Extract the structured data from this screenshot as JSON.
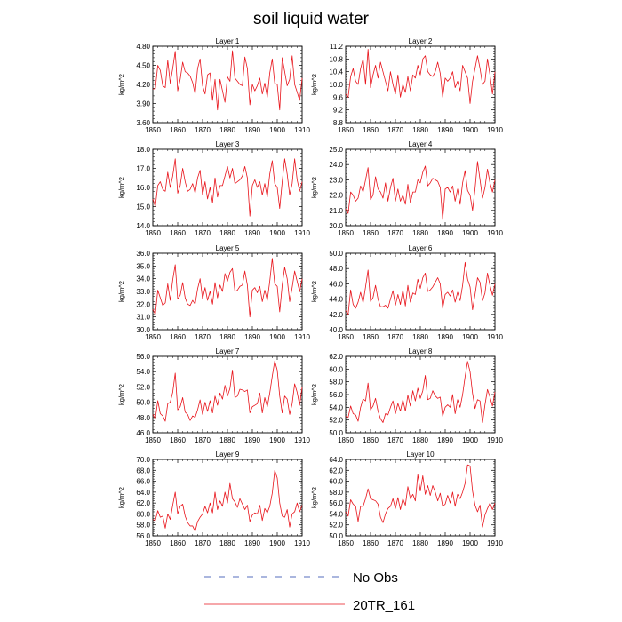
{
  "title": "soil liquid water",
  "legend": {
    "entries": [
      {
        "label": "No Obs",
        "color": "#1f3fa8",
        "style": "dashed"
      },
      {
        "label": "20TR_161",
        "color": "#e8141b",
        "style": "solid"
      }
    ]
  },
  "chart_data": [
    {
      "type": "line",
      "title": "Layer 1",
      "xlabel": "",
      "ylabel": "kg/m^2",
      "xlim": [
        1850,
        1910
      ],
      "xticks": [
        1850,
        1860,
        1870,
        1880,
        1890,
        1900,
        1910
      ],
      "ylim": [
        3.6,
        4.8
      ],
      "yticks": [
        3.6,
        3.9,
        4.2,
        4.5,
        4.8
      ],
      "ytick_labels": [
        "3.60",
        "3.90",
        "4.20",
        "4.50",
        "4.80"
      ],
      "series": [
        {
          "color": "#e8141b",
          "x_start": 1850,
          "values": [
            4.13,
            4.13,
            4.5,
            4.42,
            4.18,
            4.15,
            4.58,
            4.22,
            4.45,
            4.72,
            4.1,
            4.28,
            4.55,
            4.4,
            4.38,
            4.33,
            4.23,
            4.05,
            4.45,
            4.6,
            4.18,
            4.05,
            4.35,
            4.38,
            3.95,
            4.28,
            3.8,
            4.28,
            4.1,
            3.92,
            4.32,
            4.25,
            4.73,
            4.3,
            4.25,
            4.2,
            4.18,
            4.63,
            4.45,
            3.88,
            4.2,
            4.1,
            4.18,
            4.3,
            4.05,
            4.22,
            4.0,
            4.38,
            4.6,
            4.22,
            4.2,
            3.8,
            4.62,
            4.4,
            4.18,
            4.28,
            4.65,
            4.2,
            4.08,
            3.95,
            4.3
          ]
        }
      ]
    },
    {
      "type": "line",
      "title": "Layer 2",
      "xlabel": "",
      "ylabel": "kg/m^2",
      "xlim": [
        1850,
        1910
      ],
      "xticks": [
        1850,
        1860,
        1870,
        1880,
        1890,
        1900,
        1910
      ],
      "ylim": [
        8.8,
        11.2
      ],
      "yticks": [
        8.8,
        9.2,
        9.6,
        10.0,
        10.4,
        10.8,
        11.2
      ],
      "ytick_labels": [
        "8.8",
        "9.2",
        "9.6",
        "10.0",
        "10.4",
        "10.8",
        "11.2"
      ],
      "series": [
        {
          "color": "#e8141b",
          "x_start": 1850,
          "values": [
            9.7,
            9.6,
            10.25,
            10.5,
            10.1,
            10.0,
            10.5,
            10.8,
            10.0,
            11.1,
            9.9,
            10.3,
            10.6,
            10.2,
            10.7,
            10.4,
            10.1,
            9.8,
            10.4,
            10.0,
            9.7,
            10.3,
            9.6,
            10.0,
            9.75,
            10.25,
            9.8,
            10.3,
            10.2,
            10.6,
            10.3,
            10.8,
            10.9,
            10.4,
            10.3,
            10.25,
            10.4,
            10.7,
            10.35,
            9.6,
            10.2,
            10.1,
            10.2,
            10.4,
            9.9,
            10.1,
            9.8,
            10.6,
            10.4,
            10.2,
            9.4,
            10.1,
            10.5,
            10.9,
            10.5,
            10.0,
            10.1,
            10.8,
            10.3,
            9.7,
            10.4
          ]
        }
      ]
    },
    {
      "type": "line",
      "title": "Layer 3",
      "xlabel": "",
      "ylabel": "kg/m^2",
      "xlim": [
        1850,
        1910
      ],
      "xticks": [
        1850,
        1860,
        1870,
        1880,
        1890,
        1900,
        1910
      ],
      "ylim": [
        14.0,
        18.0
      ],
      "yticks": [
        14.0,
        15.0,
        16.0,
        17.0,
        18.0
      ],
      "ytick_labels": [
        "14.0",
        "15.0",
        "16.0",
        "17.0",
        "18.0"
      ],
      "series": [
        {
          "color": "#e8141b",
          "x_start": 1850,
          "values": [
            15.4,
            15.0,
            16.1,
            16.3,
            15.9,
            15.8,
            16.8,
            16.0,
            16.6,
            17.5,
            15.7,
            16.1,
            17.0,
            16.3,
            15.8,
            15.9,
            16.2,
            15.7,
            16.5,
            16.9,
            15.6,
            16.3,
            15.4,
            16.0,
            15.2,
            16.5,
            15.5,
            16.1,
            16.1,
            16.6,
            17.1,
            16.5,
            17.0,
            16.2,
            16.3,
            16.4,
            16.6,
            17.1,
            16.5,
            14.5,
            16.1,
            16.4,
            16.0,
            16.3,
            15.6,
            16.2,
            15.5,
            16.7,
            17.4,
            16.2,
            16.0,
            14.9,
            16.3,
            17.5,
            16.7,
            15.6,
            16.2,
            17.5,
            16.4,
            15.8,
            16.3
          ]
        }
      ]
    },
    {
      "type": "line",
      "title": "Layer 4",
      "xlabel": "",
      "ylabel": "kg/m^2",
      "xlim": [
        1850,
        1910
      ],
      "xticks": [
        1850,
        1860,
        1870,
        1880,
        1890,
        1900,
        1910
      ],
      "ylim": [
        20.0,
        25.0
      ],
      "yticks": [
        20.0,
        21.0,
        22.0,
        23.0,
        24.0,
        25.0
      ],
      "ytick_labels": [
        "20.0",
        "21.0",
        "22.0",
        "23.0",
        "24.0",
        "25.0"
      ],
      "series": [
        {
          "color": "#e8141b",
          "x_start": 1850,
          "values": [
            21.1,
            20.8,
            22.2,
            22.0,
            21.6,
            21.8,
            22.6,
            22.2,
            23.0,
            23.8,
            21.7,
            22.0,
            23.2,
            22.4,
            22.2,
            21.8,
            22.8,
            21.6,
            22.5,
            23.1,
            21.6,
            22.4,
            21.6,
            22.0,
            21.4,
            22.7,
            21.5,
            22.2,
            22.2,
            23.0,
            22.8,
            23.5,
            23.9,
            22.6,
            22.8,
            23.1,
            23.0,
            22.9,
            22.5,
            20.4,
            22.4,
            22.5,
            22.2,
            22.6,
            21.6,
            22.4,
            21.4,
            22.8,
            23.6,
            22.3,
            22.0,
            21.0,
            22.4,
            24.2,
            23.0,
            21.8,
            22.5,
            23.7,
            22.8,
            22.2,
            23.0
          ]
        }
      ]
    },
    {
      "type": "line",
      "title": "Layer 5",
      "xlabel": "",
      "ylabel": "kg/m^2",
      "xlim": [
        1850,
        1910
      ],
      "xticks": [
        1850,
        1860,
        1870,
        1880,
        1890,
        1900,
        1910
      ],
      "ylim": [
        30.0,
        36.0
      ],
      "yticks": [
        30.0,
        31.0,
        32.0,
        33.0,
        34.0,
        35.0,
        36.0
      ],
      "ytick_labels": [
        "30.0",
        "31.0",
        "32.0",
        "33.0",
        "34.0",
        "35.0",
        "36.0"
      ],
      "series": [
        {
          "color": "#e8141b",
          "x_start": 1850,
          "values": [
            31.6,
            31.2,
            33.1,
            32.5,
            31.9,
            32.1,
            33.6,
            32.3,
            33.9,
            35.1,
            32.4,
            32.7,
            33.7,
            32.5,
            32.0,
            31.9,
            32.3,
            32.0,
            33.2,
            34.0,
            32.4,
            33.3,
            32.3,
            33.0,
            32.0,
            33.7,
            32.5,
            33.5,
            33.0,
            34.4,
            33.8,
            34.5,
            34.8,
            33.0,
            33.1,
            33.4,
            33.5,
            34.6,
            33.5,
            31.0,
            33.1,
            33.3,
            32.9,
            33.4,
            32.2,
            33.1,
            32.3,
            33.8,
            35.6,
            33.6,
            33.4,
            31.4,
            33.5,
            34.9,
            34.0,
            32.2,
            33.3,
            34.6,
            33.8,
            33.0,
            34.0
          ]
        }
      ]
    },
    {
      "type": "line",
      "title": "Layer 6",
      "xlabel": "",
      "ylabel": "kg/m^2",
      "xlim": [
        1850,
        1910
      ],
      "xticks": [
        1850,
        1860,
        1870,
        1880,
        1890,
        1900,
        1910
      ],
      "ylim": [
        40.0,
        50.0
      ],
      "yticks": [
        40.0,
        42.0,
        44.0,
        46.0,
        48.0,
        50.0
      ],
      "ytick_labels": [
        "40.0",
        "42.0",
        "44.0",
        "46.0",
        "48.0",
        "50.0"
      ],
      "series": [
        {
          "color": "#e8141b",
          "x_start": 1850,
          "values": [
            42.5,
            42.0,
            45.2,
            43.3,
            42.8,
            43.6,
            44.9,
            43.5,
            45.6,
            47.8,
            43.7,
            44.2,
            45.8,
            44.0,
            43.0,
            43.0,
            43.2,
            42.8,
            44.0,
            45.1,
            43.2,
            44.6,
            43.3,
            45.2,
            43.1,
            45.8,
            43.6,
            44.8,
            44.6,
            46.6,
            45.4,
            46.8,
            47.4,
            45.0,
            45.2,
            45.6,
            46.2,
            46.8,
            46.0,
            42.8,
            44.6,
            44.9,
            44.4,
            45.2,
            43.6,
            44.9,
            43.8,
            45.8,
            48.8,
            46.6,
            45.6,
            42.6,
            44.6,
            46.8,
            46.2,
            43.8,
            44.8,
            47.4,
            45.8,
            44.5,
            46.0
          ]
        }
      ]
    },
    {
      "type": "line",
      "title": "Layer 7",
      "xlabel": "",
      "ylabel": "kg/m^2",
      "xlim": [
        1850,
        1910
      ],
      "xticks": [
        1850,
        1860,
        1870,
        1880,
        1890,
        1900,
        1910
      ],
      "ylim": [
        46.0,
        56.0
      ],
      "yticks": [
        46.0,
        48.0,
        50.0,
        52.0,
        54.0,
        56.0
      ],
      "ytick_labels": [
        "46.0",
        "48.0",
        "50.0",
        "52.0",
        "54.0",
        "56.0"
      ],
      "series": [
        {
          "color": "#e8141b",
          "x_start": 1850,
          "values": [
            48.4,
            47.8,
            50.2,
            48.5,
            48.2,
            47.5,
            49.8,
            50.0,
            51.3,
            53.8,
            49.0,
            49.4,
            50.6,
            48.7,
            48.4,
            47.6,
            48.2,
            48.0,
            49.0,
            50.3,
            48.4,
            50.0,
            48.8,
            50.2,
            48.6,
            50.8,
            49.6,
            51.2,
            50.4,
            52.2,
            50.8,
            51.8,
            54.2,
            50.6,
            50.8,
            51.7,
            51.6,
            51.4,
            51.6,
            48.6,
            49.4,
            49.6,
            49.8,
            51.2,
            48.6,
            50.6,
            49.4,
            51.2,
            53.4,
            55.4,
            54.2,
            50.8,
            48.6,
            50.8,
            50.4,
            48.4,
            49.8,
            52.4,
            51.3,
            49.6,
            52.0
          ]
        }
      ]
    },
    {
      "type": "line",
      "title": "Layer 8",
      "xlabel": "",
      "ylabel": "kg/m^2",
      "xlim": [
        1850,
        1910
      ],
      "xticks": [
        1850,
        1860,
        1870,
        1880,
        1890,
        1900,
        1910
      ],
      "ylim": [
        50.0,
        62.0
      ],
      "yticks": [
        50.0,
        52.0,
        54.0,
        56.0,
        58.0,
        60.0,
        62.0
      ],
      "ytick_labels": [
        "50.0",
        "52.0",
        "54.0",
        "56.0",
        "58.0",
        "60.0",
        "62.0"
      ],
      "series": [
        {
          "color": "#e8141b",
          "x_start": 1850,
          "values": [
            52.6,
            52.4,
            54.2,
            53.0,
            52.8,
            51.8,
            54.0,
            55.3,
            55.0,
            57.8,
            53.6,
            54.2,
            55.4,
            53.4,
            52.2,
            51.6,
            53.0,
            52.8,
            54.0,
            55.0,
            53.0,
            54.6,
            53.4,
            55.2,
            53.4,
            55.9,
            54.2,
            56.6,
            55.0,
            57.0,
            55.4,
            56.6,
            59.0,
            55.2,
            55.4,
            56.6,
            55.8,
            55.4,
            55.6,
            52.6,
            54.0,
            54.4,
            54.0,
            56.0,
            53.0,
            55.2,
            54.0,
            56.0,
            58.8,
            61.2,
            59.6,
            56.2,
            53.8,
            55.2,
            55.0,
            51.6,
            54.4,
            56.8,
            55.6,
            54.2,
            56.4
          ]
        }
      ]
    },
    {
      "type": "line",
      "title": "Layer 9",
      "xlabel": "",
      "ylabel": "kg/m^2",
      "xlim": [
        1850,
        1910
      ],
      "xticks": [
        1850,
        1860,
        1870,
        1880,
        1890,
        1900,
        1910
      ],
      "ylim": [
        56.0,
        70.0
      ],
      "yticks": [
        56.0,
        58.0,
        60.0,
        62.0,
        64.0,
        66.0,
        68.0,
        70.0
      ],
      "ytick_labels": [
        "56.0",
        "58.0",
        "60.0",
        "62.0",
        "64.0",
        "66.0",
        "68.0",
        "70.0"
      ],
      "series": [
        {
          "color": "#e8141b",
          "x_start": 1850,
          "values": [
            59.0,
            58.8,
            60.6,
            59.4,
            59.6,
            57.4,
            60.0,
            59.0,
            61.6,
            64.0,
            60.0,
            61.4,
            61.8,
            59.6,
            58.4,
            57.8,
            57.8,
            56.8,
            58.6,
            59.4,
            60.0,
            61.4,
            60.2,
            62.0,
            60.2,
            64.0,
            60.8,
            62.4,
            61.4,
            64.0,
            62.0,
            65.6,
            62.8,
            62.2,
            61.2,
            62.8,
            61.8,
            60.8,
            61.6,
            58.6,
            59.8,
            60.2,
            60.0,
            61.6,
            58.8,
            61.0,
            60.2,
            61.4,
            63.8,
            68.0,
            66.6,
            62.0,
            59.6,
            59.4,
            60.8,
            57.6,
            60.0,
            60.4,
            62.0,
            60.4,
            61.6
          ]
        }
      ]
    },
    {
      "type": "line",
      "title": "Layer 10",
      "xlabel": "",
      "ylabel": "kg/m^2",
      "xlim": [
        1850,
        1910
      ],
      "xticks": [
        1850,
        1860,
        1870,
        1880,
        1890,
        1900,
        1910
      ],
      "ylim": [
        50.0,
        64.0
      ],
      "yticks": [
        50.0,
        52.0,
        54.0,
        56.0,
        58.0,
        60.0,
        62.0,
        64.0
      ],
      "ytick_labels": [
        "50.0",
        "52.0",
        "54.0",
        "56.0",
        "58.0",
        "60.0",
        "62.0",
        "64.0"
      ],
      "series": [
        {
          "color": "#e8141b",
          "x_start": 1850,
          "values": [
            54.4,
            53.6,
            56.6,
            55.8,
            55.4,
            52.6,
            55.4,
            55.4,
            56.8,
            58.6,
            56.8,
            56.6,
            56.4,
            55.8,
            53.4,
            52.4,
            54.0,
            55.0,
            55.4,
            56.8,
            55.0,
            57.0,
            54.8,
            56.8,
            55.6,
            59.0,
            56.8,
            57.6,
            56.4,
            61.2,
            58.2,
            61.0,
            57.6,
            59.2,
            57.4,
            59.2,
            58.0,
            56.4,
            57.8,
            55.4,
            55.8,
            57.4,
            56.0,
            58.0,
            55.4,
            57.6,
            56.8,
            58.0,
            59.6,
            63.0,
            62.8,
            58.2,
            55.6,
            54.4,
            55.6,
            51.6,
            53.8,
            55.0,
            56.0,
            54.8,
            56.0
          ]
        }
      ]
    }
  ]
}
